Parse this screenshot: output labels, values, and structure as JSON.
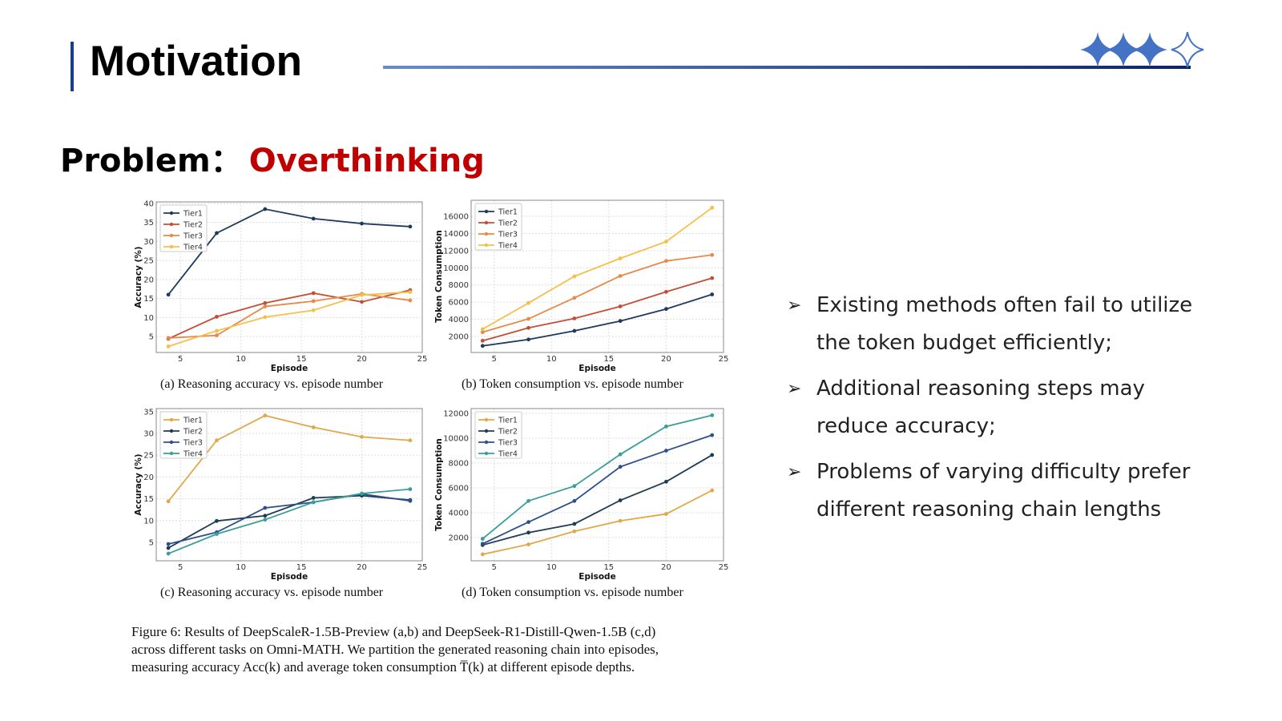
{
  "header": {
    "title": "Motivation"
  },
  "problem": {
    "label": "Problem：",
    "highlight": "Overthinking"
  },
  "colors": {
    "accent": "#1a3f8a",
    "highlight": "#c00000",
    "star": "#4472c4"
  },
  "chart_data": [
    {
      "type": "line",
      "panel": "a",
      "caption": "(a) Reasoning accuracy vs. episode number",
      "xlabel": "Episode",
      "ylabel": "Accuracy (%)",
      "xlim": [
        3,
        25
      ],
      "ylim": [
        0.8,
        40.4
      ],
      "xticks": [
        5,
        10,
        15,
        20,
        25
      ],
      "yticks": [
        5,
        10,
        15,
        20,
        25,
        30,
        35,
        40
      ],
      "grid": true,
      "legend": "top-left",
      "x": [
        4,
        8,
        12,
        16,
        20,
        24
      ],
      "series": [
        {
          "name": "Tier1",
          "color": "#1f3a5f",
          "values": [
            16.0,
            32.2,
            38.5,
            36.0,
            34.7,
            33.9
          ]
        },
        {
          "name": "Tier2",
          "color": "#c44e35",
          "values": [
            4.4,
            10.2,
            13.8,
            16.4,
            14.1,
            17.2
          ]
        },
        {
          "name": "Tier3",
          "color": "#e8894a",
          "values": [
            4.6,
            5.3,
            12.9,
            14.3,
            16.2,
            14.5
          ]
        },
        {
          "name": "Tier4",
          "color": "#f5c04a",
          "values": [
            2.4,
            6.5,
            10.1,
            11.9,
            15.9,
            16.7
          ]
        }
      ]
    },
    {
      "type": "line",
      "panel": "b",
      "caption": "(b) Token consumption vs. episode number",
      "xlabel": "Episode",
      "ylabel": "Token Consumption",
      "xlim": [
        3,
        25
      ],
      "ylim": [
        130,
        17870
      ],
      "xticks": [
        5,
        10,
        15,
        20,
        25
      ],
      "yticks": [
        2000,
        4000,
        6000,
        8000,
        10000,
        12000,
        14000,
        16000
      ],
      "grid": true,
      "legend": "top-left",
      "x": [
        4,
        8,
        12,
        16,
        20,
        24
      ],
      "series": [
        {
          "name": "Tier1",
          "color": "#1f3a5f",
          "values": [
            900,
            1650,
            2650,
            3800,
            5200,
            6900
          ]
        },
        {
          "name": "Tier2",
          "color": "#c44e35",
          "values": [
            1500,
            3000,
            4100,
            5500,
            7200,
            8800
          ]
        },
        {
          "name": "Tier3",
          "color": "#e8894a",
          "values": [
            2500,
            4050,
            6500,
            9050,
            10800,
            11500
          ]
        },
        {
          "name": "Tier4",
          "color": "#f5c04a",
          "values": [
            2850,
            5900,
            9000,
            11100,
            13050,
            17000
          ]
        }
      ]
    },
    {
      "type": "line",
      "panel": "c",
      "caption": "(c) Reasoning accuracy vs. episode number",
      "xlabel": "Episode",
      "ylabel": "Accuracy (%)",
      "xlim": [
        3,
        25
      ],
      "ylim": [
        0.76,
        35.7
      ],
      "xticks": [
        5,
        10,
        15,
        20,
        25
      ],
      "yticks": [
        5,
        10,
        15,
        20,
        25,
        30,
        35
      ],
      "grid": true,
      "legend": "top-left",
      "x": [
        4,
        8,
        12,
        16,
        20,
        24
      ],
      "series": [
        {
          "name": "Tier1",
          "color": "#e0a84a",
          "values": [
            14.4,
            28.4,
            34.1,
            31.4,
            29.2,
            28.4
          ]
        },
        {
          "name": "Tier2",
          "color": "#1e3d52",
          "values": [
            3.7,
            9.9,
            11.1,
            15.2,
            15.7,
            14.7
          ]
        },
        {
          "name": "Tier3",
          "color": "#2e4f8f",
          "values": [
            4.6,
            7.3,
            12.9,
            14.2,
            16.1,
            14.5
          ]
        },
        {
          "name": "Tier4",
          "color": "#3a9e9a",
          "values": [
            2.4,
            6.9,
            10.2,
            14.2,
            16.2,
            17.2
          ]
        }
      ]
    },
    {
      "type": "line",
      "panel": "d",
      "caption": "(d) Token consumption vs. episode number",
      "xlabel": "Episode",
      "ylabel": "Token Consumption",
      "xlim": [
        3,
        25
      ],
      "ylim": [
        130,
        12390
      ],
      "xticks": [
        5,
        10,
        15,
        20,
        25
      ],
      "yticks": [
        2000,
        4000,
        6000,
        8000,
        10000,
        12000
      ],
      "grid": true,
      "legend": "top-left",
      "x": [
        4,
        8,
        12,
        16,
        20,
        24
      ],
      "series": [
        {
          "name": "Tier1",
          "color": "#e0a84a",
          "values": [
            650,
            1450,
            2500,
            3350,
            3900,
            5800
          ]
        },
        {
          "name": "Tier2",
          "color": "#1e3d52",
          "values": [
            1400,
            2400,
            3100,
            5000,
            6500,
            8650
          ]
        },
        {
          "name": "Tier3",
          "color": "#2e4f8f",
          "values": [
            1500,
            3250,
            4950,
            7700,
            9000,
            10250
          ]
        },
        {
          "name": "Tier4",
          "color": "#3a9e9a",
          "values": [
            1900,
            4950,
            6150,
            8700,
            10950,
            11850
          ]
        }
      ]
    }
  ],
  "figure_caption": [
    "Figure 6:  Results of DeepScaleR-1.5B-Preview (a,b) and DeepSeek-R1-Distill-Qwen-1.5B (c,d)",
    "across different tasks on Omni-MATH. We partition the generated reasoning chain into episodes,",
    "measuring accuracy Acc(k) and average token consumption T̅(k) at different episode depths."
  ],
  "bullets": [
    {
      "icon": "arrow-bullet-icon",
      "lines": [
        "Existing methods often fail to utilize",
        "the token budget efficiently;"
      ]
    },
    {
      "icon": "arrow-bullet-icon",
      "lines": [
        "Additional reasoning steps may",
        "reduce accuracy;"
      ]
    },
    {
      "icon": "arrow-bullet-icon",
      "lines": [
        "Problems of varying difficulty prefer",
        "different reasoning chain lengths"
      ]
    }
  ],
  "bullet_glyph": "➢"
}
